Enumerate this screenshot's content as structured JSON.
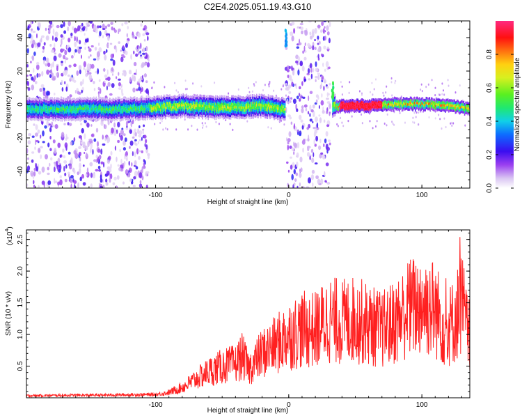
{
  "title": "C2E4.2025.051.19.43.G10",
  "colors": {
    "snr_line": "#ff2020",
    "axis": "#000000"
  },
  "chart_data": [
    {
      "type": "heatmap",
      "title": "C2E4.2025.051.19.43.G10",
      "xlabel": "Height of straight line (km)",
      "ylabel": "Frequency (Hz)",
      "xlim": [
        -197,
        136
      ],
      "ylim": [
        -50,
        50
      ],
      "x_ticks": [
        -100,
        0,
        100
      ],
      "x_tick_labels": [
        "-100",
        "0",
        "100"
      ],
      "y_ticks": [
        40,
        20,
        0,
        -20,
        -40
      ],
      "y_tick_labels": [
        "40",
        "20",
        "0",
        "-20",
        "-40"
      ],
      "colorbar": {
        "label": "Normalized spectral amplitude",
        "range": [
          0,
          1
        ],
        "ticks": [
          0.0,
          0.2,
          0.4,
          0.6,
          0.8
        ],
        "tick_labels": [
          "0.0",
          "0.2",
          "0.4",
          "0.6",
          "0.8"
        ],
        "colormap": "rainbow"
      },
      "ridge": [
        {
          "x": -185,
          "y": -2
        },
        {
          "x": -160,
          "y": -2
        },
        {
          "x": -140,
          "y": -2
        },
        {
          "x": -120,
          "y": -2
        },
        {
          "x": -100,
          "y": -1
        },
        {
          "x": -80,
          "y": 0
        },
        {
          "x": -60,
          "y": -1
        },
        {
          "x": -40,
          "y": -1
        },
        {
          "x": -20,
          "y": 0
        },
        {
          "x": -5,
          "y": -2
        },
        {
          "x": 40,
          "y": 0
        },
        {
          "x": 60,
          "y": 0
        },
        {
          "x": 80,
          "y": 1
        },
        {
          "x": 100,
          "y": 1
        },
        {
          "x": 120,
          "y": 0
        },
        {
          "x": 135,
          "y": -2
        }
      ],
      "noise_regions": [
        [
          -197,
          -105
        ],
        [
          -2,
          31
        ]
      ]
    },
    {
      "type": "line",
      "xlabel": "Height of straight line (km)",
      "ylabel": "SNR (10 * v/v)",
      "y_multiplier_label": "(x10",
      "y_multiplier_exponent": "4",
      "xlim": [
        -197,
        136
      ],
      "ylim": [
        0,
        2.65
      ],
      "x_ticks": [
        -100,
        0,
        100
      ],
      "x_tick_labels": [
        "-100",
        "0",
        "100"
      ],
      "y_ticks": [
        0.5,
        1.0,
        1.5,
        2.0,
        2.5
      ],
      "y_tick_labels": [
        "0.5",
        "1.0",
        "1.5",
        "2.0",
        "2.5"
      ],
      "series": [
        {
          "color": "#ff2020",
          "envelope": [
            {
              "x": -197,
              "y": 0.04
            },
            {
              "x": -140,
              "y": 0.05
            },
            {
              "x": -100,
              "y": 0.06
            },
            {
              "x": -90,
              "y": 0.1
            },
            {
              "x": -80,
              "y": 0.2
            },
            {
              "x": -70,
              "y": 0.35
            },
            {
              "x": -60,
              "y": 0.5
            },
            {
              "x": -50,
              "y": 0.6
            },
            {
              "x": -40,
              "y": 0.65
            },
            {
              "x": -35,
              "y": 0.8
            },
            {
              "x": -30,
              "y": 0.55
            },
            {
              "x": -20,
              "y": 0.85
            },
            {
              "x": -10,
              "y": 1.0
            },
            {
              "x": 0,
              "y": 1.2
            },
            {
              "x": 10,
              "y": 1.3
            },
            {
              "x": 20,
              "y": 1.3
            },
            {
              "x": 30,
              "y": 1.5
            },
            {
              "x": 40,
              "y": 1.45
            },
            {
              "x": 50,
              "y": 1.5
            },
            {
              "x": 60,
              "y": 1.4
            },
            {
              "x": 70,
              "y": 1.3
            },
            {
              "x": 80,
              "y": 1.45
            },
            {
              "x": 90,
              "y": 1.7
            },
            {
              "x": 100,
              "y": 1.8
            },
            {
              "x": 110,
              "y": 1.7
            },
            {
              "x": 118,
              "y": 1.3
            },
            {
              "x": 125,
              "y": 1.5
            },
            {
              "x": 130,
              "y": 1.85
            },
            {
              "x": 136,
              "y": 1.0
            }
          ]
        }
      ]
    }
  ]
}
